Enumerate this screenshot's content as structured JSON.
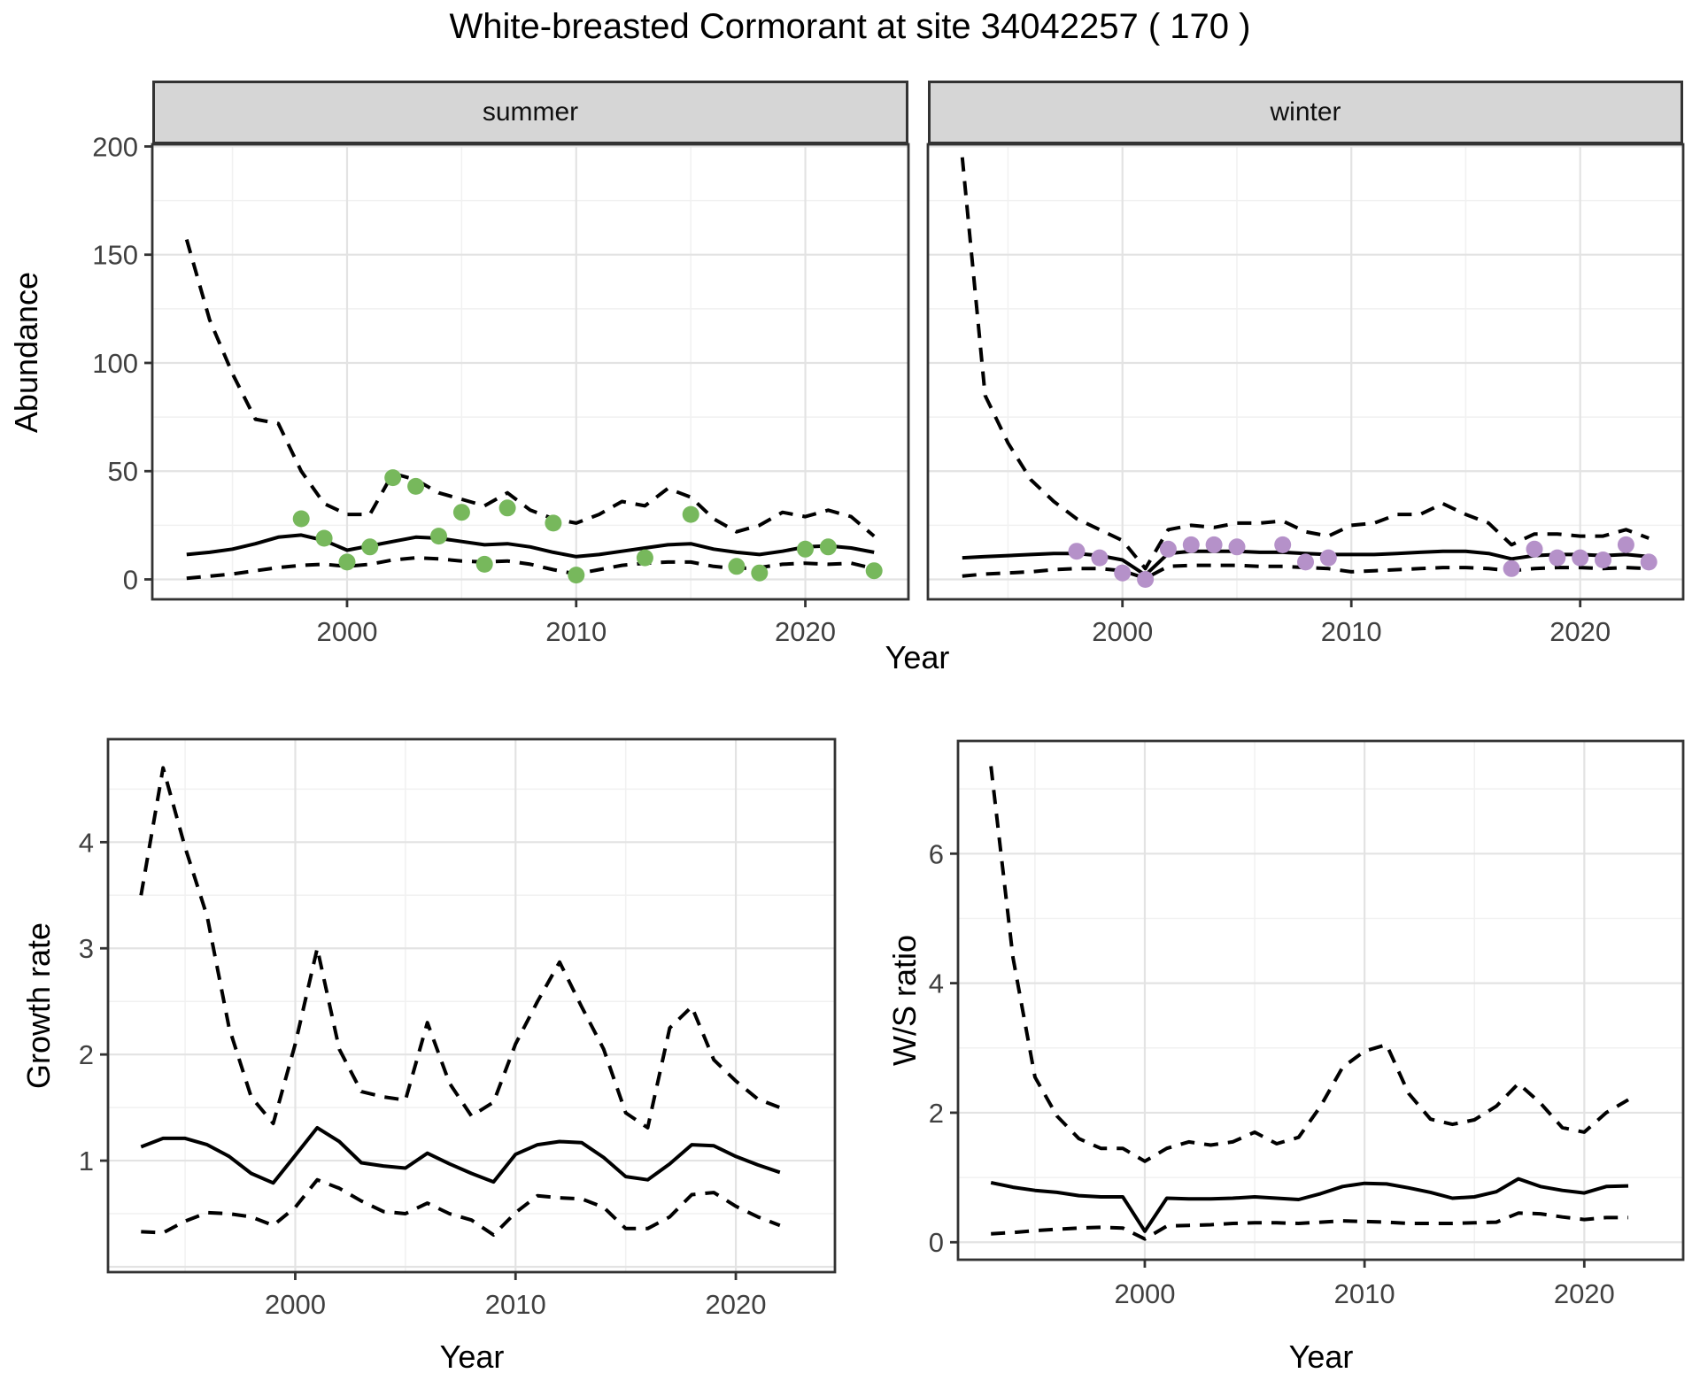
{
  "title": "White-breasted Cormorant at site 34042257 ( 170 )",
  "top_row": {
    "ylabel": "Abundance",
    "xlabel": "Year",
    "facets": [
      {
        "label": "summer"
      },
      {
        "label": "winter"
      }
    ]
  },
  "bottom_row": {
    "growth": {
      "ylabel": "Growth rate",
      "xlabel": "Year"
    },
    "ws": {
      "ylabel": "W/S ratio",
      "xlabel": "Year"
    }
  },
  "colors": {
    "summer_points": "#77b85c",
    "winter_points": "#b591c9",
    "line": "#000000",
    "grid_major": "#e3e3e3",
    "grid_minor": "#f1f1f1",
    "panel_border": "#333333",
    "strip_fill": "#d6d6d6",
    "tick_text": "#404040"
  },
  "chart_data": [
    {
      "id": "summer",
      "type": "line",
      "facet": "summer",
      "xlabel": "Year",
      "ylabel": "Abundance",
      "xlim": [
        1991.5,
        2024.5
      ],
      "ylim": [
        -9.2,
        201
      ],
      "x_ticks": [
        2000,
        2010,
        2020
      ],
      "y_ticks": [
        0,
        50,
        100,
        150,
        200
      ],
      "grid": true,
      "years": [
        1993,
        1994,
        1995,
        1996,
        1997,
        1998,
        1999,
        2000,
        2001,
        2002,
        2003,
        2004,
        2005,
        2006,
        2007,
        2008,
        2009,
        2010,
        2011,
        2012,
        2013,
        2014,
        2015,
        2016,
        2017,
        2018,
        2019,
        2020,
        2021,
        2022,
        2023
      ],
      "series": [
        {
          "name": "upper_ci",
          "style": "dashed",
          "values": [
            157,
            120,
            95,
            74,
            72,
            50,
            35,
            30,
            30,
            49,
            46,
            40,
            37,
            34,
            40,
            32,
            28,
            26,
            30,
            36,
            34,
            42,
            38,
            28,
            22,
            25,
            31,
            29,
            32,
            29,
            20
          ]
        },
        {
          "name": "median",
          "style": "solid",
          "values": [
            11.5,
            12.5,
            14,
            16.5,
            19.5,
            20.5,
            18,
            13.5,
            15.5,
            17.5,
            19.5,
            19,
            17.5,
            16,
            16.5,
            15,
            12.5,
            10.5,
            11.5,
            13,
            14.5,
            16,
            16.5,
            14,
            12.5,
            11.5,
            13,
            15,
            15.5,
            14.5,
            12.5
          ]
        },
        {
          "name": "lower_ci",
          "style": "dashed",
          "values": [
            0.5,
            1.5,
            2.5,
            4,
            5.5,
            6.5,
            7,
            6,
            7,
            9,
            10,
            9.5,
            8.5,
            8,
            8.5,
            7,
            4.5,
            2.5,
            4.5,
            6.5,
            7.5,
            8,
            8,
            6,
            5,
            5.5,
            7,
            7.5,
            7,
            7.5,
            5
          ]
        }
      ],
      "points": {
        "name": "observed_counts",
        "color": "#77b85c",
        "years": [
          1998,
          1999,
          2000,
          2001,
          2002,
          2003,
          2004,
          2005,
          2006,
          2007,
          2009,
          2010,
          2013,
          2015,
          2017,
          2018,
          2020,
          2021,
          2023
        ],
        "values": [
          28,
          19,
          8,
          15,
          47,
          43,
          20,
          31,
          7,
          33,
          26,
          2,
          10,
          30,
          6,
          3,
          14,
          15,
          4
        ]
      }
    },
    {
      "id": "winter",
      "type": "line",
      "facet": "winter",
      "xlabel": "Year",
      "ylabel": "Abundance",
      "xlim": [
        1991.5,
        2024.5
      ],
      "ylim": [
        -9.2,
        201
      ],
      "x_ticks": [
        2000,
        2010,
        2020
      ],
      "y_ticks": [
        0,
        50,
        100,
        150,
        200
      ],
      "grid": true,
      "years": [
        1993,
        1994,
        1995,
        1996,
        1997,
        1998,
        1999,
        2000,
        2001,
        2002,
        2003,
        2004,
        2005,
        2006,
        2007,
        2008,
        2009,
        2010,
        2011,
        2012,
        2013,
        2014,
        2015,
        2016,
        2017,
        2018,
        2019,
        2020,
        2021,
        2022,
        2023
      ],
      "series": [
        {
          "name": "upper_ci",
          "style": "dashed",
          "values": [
            195,
            85,
            63,
            46,
            36,
            28,
            23,
            18,
            5,
            23,
            25,
            24,
            26,
            26,
            27,
            22,
            20,
            25,
            26,
            30,
            30,
            35,
            30,
            26,
            16,
            21,
            21,
            20,
            20,
            23,
            19
          ]
        },
        {
          "name": "median",
          "style": "solid",
          "values": [
            10,
            10.5,
            11,
            11.5,
            12,
            12,
            11,
            9,
            2,
            12,
            13,
            13,
            13,
            12.5,
            12.5,
            12,
            11.5,
            11.5,
            11.5,
            12,
            12.5,
            13,
            13,
            12,
            9.5,
            11,
            11.5,
            11.5,
            11,
            11.5,
            10.5
          ]
        },
        {
          "name": "lower_ci",
          "style": "dashed",
          "values": [
            1.5,
            2.5,
            3,
            3.5,
            4.5,
            5,
            5,
            4,
            0.5,
            6,
            6.5,
            6.5,
            6.5,
            6,
            6,
            5.5,
            5,
            3.5,
            4,
            4.5,
            5,
            5.5,
            5.5,
            5,
            4,
            5,
            5.5,
            5.5,
            5,
            5.5,
            5
          ]
        }
      ],
      "points": {
        "name": "observed_counts",
        "color": "#b591c9",
        "years": [
          1998,
          1999,
          2000,
          2001,
          2002,
          2003,
          2004,
          2005,
          2007,
          2008,
          2009,
          2017,
          2018,
          2019,
          2020,
          2021,
          2022,
          2023
        ],
        "values": [
          13,
          10,
          3,
          0,
          14,
          16,
          16,
          15,
          16,
          8,
          10,
          5,
          14,
          10,
          10,
          9,
          16,
          8
        ]
      }
    },
    {
      "id": "growth",
      "type": "line",
      "xlabel": "Year",
      "ylabel": "Growth rate",
      "xlim": [
        1991.5,
        2024.5
      ],
      "ylim": [
        -0.05,
        4.97
      ],
      "x_ticks": [
        2000,
        2010,
        2020
      ],
      "y_ticks": [
        1,
        2,
        3,
        4
      ],
      "grid": true,
      "years": [
        1993,
        1994,
        1995,
        1996,
        1997,
        1998,
        1999,
        2000,
        2001,
        2002,
        2003,
        2004,
        2005,
        2006,
        2007,
        2008,
        2009,
        2010,
        2011,
        2012,
        2013,
        2014,
        2015,
        2016,
        2017,
        2018,
        2019,
        2020,
        2021,
        2022
      ],
      "series": [
        {
          "name": "upper_ci",
          "style": "dashed",
          "values": [
            3.5,
            4.7,
            3.95,
            3.3,
            2.25,
            1.6,
            1.35,
            2.1,
            3.0,
            2.05,
            1.65,
            1.6,
            1.57,
            2.3,
            1.73,
            1.42,
            1.55,
            2.1,
            2.5,
            2.87,
            2.45,
            2.05,
            1.45,
            1.31,
            2.25,
            2.45,
            1.95,
            1.75,
            1.58,
            1.5
          ]
        },
        {
          "name": "median",
          "style": "solid",
          "values": [
            1.13,
            1.21,
            1.21,
            1.15,
            1.04,
            0.88,
            0.79,
            1.05,
            1.31,
            1.18,
            0.98,
            0.95,
            0.93,
            1.07,
            0.97,
            0.88,
            0.8,
            1.06,
            1.15,
            1.18,
            1.17,
            1.03,
            0.85,
            0.82,
            0.97,
            1.15,
            1.14,
            1.04,
            0.96,
            0.89
          ]
        },
        {
          "name": "lower_ci",
          "style": "dashed",
          "values": [
            0.33,
            0.32,
            0.43,
            0.51,
            0.5,
            0.47,
            0.39,
            0.56,
            0.82,
            0.74,
            0.62,
            0.52,
            0.5,
            0.6,
            0.5,
            0.44,
            0.3,
            0.51,
            0.67,
            0.65,
            0.64,
            0.56,
            0.36,
            0.36,
            0.47,
            0.68,
            0.7,
            0.57,
            0.47,
            0.39
          ]
        }
      ]
    },
    {
      "id": "ws",
      "type": "line",
      "xlabel": "Year",
      "ylabel": "W/S ratio",
      "xlim": [
        1991.5,
        2024.5
      ],
      "ylim": [
        -0.27,
        7.74
      ],
      "x_ticks": [
        2000,
        2010,
        2020
      ],
      "y_ticks": [
        0,
        2,
        4,
        6
      ],
      "grid": true,
      "years": [
        1993,
        1994,
        1995,
        1996,
        1997,
        1998,
        1999,
        2000,
        2001,
        2002,
        2003,
        2004,
        2005,
        2006,
        2007,
        2008,
        2009,
        2010,
        2011,
        2012,
        2013,
        2014,
        2015,
        2016,
        2017,
        2018,
        2019,
        2020,
        2021,
        2022
      ],
      "series": [
        {
          "name": "upper_ci",
          "style": "dashed",
          "values": [
            7.35,
            4.4,
            2.55,
            1.95,
            1.6,
            1.45,
            1.45,
            1.25,
            1.45,
            1.55,
            1.5,
            1.55,
            1.7,
            1.52,
            1.62,
            2.1,
            2.7,
            2.95,
            3.05,
            2.3,
            1.9,
            1.82,
            1.89,
            2.1,
            2.45,
            2.15,
            1.77,
            1.7,
            2.0,
            2.2
          ]
        },
        {
          "name": "median",
          "style": "solid",
          "values": [
            0.92,
            0.85,
            0.8,
            0.77,
            0.72,
            0.7,
            0.7,
            0.17,
            0.68,
            0.67,
            0.67,
            0.68,
            0.7,
            0.68,
            0.66,
            0.75,
            0.86,
            0.91,
            0.9,
            0.84,
            0.77,
            0.68,
            0.7,
            0.78,
            0.98,
            0.86,
            0.8,
            0.76,
            0.86,
            0.87
          ]
        },
        {
          "name": "lower_ci",
          "style": "dashed",
          "values": [
            0.13,
            0.15,
            0.18,
            0.2,
            0.22,
            0.23,
            0.22,
            0.05,
            0.25,
            0.26,
            0.27,
            0.29,
            0.3,
            0.3,
            0.29,
            0.31,
            0.33,
            0.32,
            0.31,
            0.29,
            0.29,
            0.29,
            0.3,
            0.31,
            0.45,
            0.44,
            0.39,
            0.35,
            0.38,
            0.38
          ]
        }
      ]
    }
  ]
}
